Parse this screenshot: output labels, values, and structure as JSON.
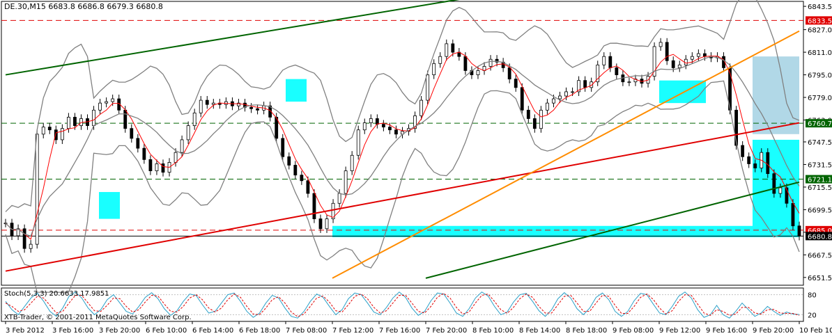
{
  "window": {
    "title": "DE.30,M15  6683.8 6686.8 6679.3 6680.8",
    "copyright": "XTB-Trader, © 2001-2011 MetaQuotes Software Corp."
  },
  "colors": {
    "background": "#ffffff",
    "grid": "#c0c0c0",
    "candle": "#000000",
    "ma": "#ff0000",
    "bollinger": "#808080",
    "green_line": "#006400",
    "red_line": "#e00000",
    "orange_line": "#ff8c00",
    "zone_cyan": "#00ffff",
    "zone_lightblue": "#a8d4e4",
    "stoch_main": "#2aa0c8",
    "stoch_signal": "#e00000"
  },
  "icons": [
    "chart-window"
  ],
  "chart_data": [
    {
      "type": "line",
      "subtype": "candlestick",
      "symbol": "DE.30",
      "timeframe": "M15",
      "ohlc_last": {
        "open": 6683.8,
        "high": 6686.8,
        "low": 6679.3,
        "close": 6680.8
      },
      "x_tick_labels": [
        "3 Feb 2012",
        "3 Feb 16:00",
        "3 Feb 20:00",
        "6 Feb 10:00",
        "6 Feb 14:00",
        "6 Feb 18:00",
        "7 Feb 08:00",
        "7 Feb 12:00",
        "7 Feb 16:00",
        "7 Feb 20:00",
        "8 Feb 10:00",
        "8 Feb 14:00",
        "8 Feb 18:00",
        "9 Feb 08:00",
        "9 Feb 12:00",
        "9 Feb 16:00",
        "9 Feb 20:00",
        "10 Feb 10:00"
      ],
      "y_tick_labels": [
        "6843.5",
        "6827.0",
        "6811.0",
        "6795.0",
        "6779.0",
        "6763.0",
        "6747.5",
        "6731.5",
        "6715.5",
        "6699.5",
        "6683.5",
        "6667.5",
        "6651.5"
      ],
      "ylim": [
        6646,
        6847
      ],
      "price_marks": [
        {
          "label": "6833.5",
          "value": 6833.5,
          "color": "#e00000",
          "line": "dashed"
        },
        {
          "label": "6760.7",
          "value": 6760.7,
          "color": "#006400",
          "line": "dashed"
        },
        {
          "label": "6721.1",
          "value": 6721.1,
          "color": "#006400",
          "line": "dashed"
        },
        {
          "label": "6685.0",
          "value": 6685.0,
          "color": "#e00000",
          "line": "dashed"
        },
        {
          "label": "6680.8",
          "value": 6680.8,
          "color": "#000000",
          "line": "solid"
        }
      ],
      "trend_lines": [
        {
          "color": "#006400",
          "from": {
            "x": "3 Feb 2012",
            "y": 6795
          },
          "to": {
            "x": "8 Feb 10:00",
            "y": 6850
          }
        },
        {
          "color": "#006400",
          "from": {
            "x": "7 Feb 20:00",
            "y": 6651
          },
          "to": {
            "x": "10 Feb 10:00",
            "y": 6719
          }
        },
        {
          "color": "#e00000",
          "from": {
            "x": "3 Feb 2012",
            "y": 6656
          },
          "to": {
            "x": "10 Feb 10:00",
            "y": 6761
          }
        },
        {
          "color": "#ff8c00",
          "from": {
            "x": "7 Feb 12:00",
            "y": 6651
          },
          "to": {
            "x": "10 Feb 10:00",
            "y": 6826
          }
        }
      ],
      "zones": [
        {
          "color": "#00ffff",
          "from": {
            "x": "3 Feb 20:00",
            "y": 6712
          },
          "to": {
            "x": "3 Feb 20:00",
            "y": 6693
          }
        },
        {
          "color": "#00ffff",
          "from": {
            "x": "7 Feb 08:00",
            "y": 6792
          },
          "to": {
            "x": "7 Feb 08:00",
            "y": 6776
          }
        },
        {
          "color": "#00ffff",
          "from": {
            "x": "7 Feb 12:00",
            "y": 6688
          },
          "to": {
            "x": "9 Feb 20:00",
            "y": 6680
          }
        },
        {
          "color": "#00ffff",
          "from": {
            "x": "9 Feb 12:00",
            "y": 6791
          },
          "to": {
            "x": "9 Feb 16:00",
            "y": 6775
          }
        },
        {
          "color": "#00ffff",
          "from": {
            "x": "9 Feb 20:00",
            "y": 6749
          },
          "to": {
            "x": "10 Feb 10:00",
            "y": 6680
          }
        },
        {
          "color": "#a8d4e4",
          "from": {
            "x": "9 Feb 20:00",
            "y": 6808
          },
          "to": {
            "x": "10 Feb 10:00",
            "y": 6753
          }
        }
      ],
      "closes": [
        6690,
        6681,
        6686,
        6672,
        6675,
        6753,
        6758,
        6756,
        6749,
        6757,
        6765,
        6759,
        6764,
        6759,
        6770,
        6775,
        6776,
        6778,
        6770,
        6757,
        6750,
        6743,
        6735,
        6727,
        6732,
        6726,
        6733,
        6740,
        6749,
        6759,
        6768,
        6777,
        6774,
        6775,
        6774,
        6776,
        6773,
        6775,
        6772,
        6771,
        6770,
        6773,
        6765,
        6750,
        6737,
        6731,
        6724,
        6720,
        6711,
        6693,
        6686,
        6693,
        6704,
        6711,
        6727,
        6738,
        6756,
        6761,
        6764,
        6760,
        6758,
        6756,
        6753,
        6755,
        6757,
        6766,
        6777,
        6795,
        6803,
        6808,
        6817,
        6811,
        6808,
        6798,
        6795,
        6798,
        6801,
        6806,
        6804,
        6800,
        6792,
        6786,
        6770,
        6764,
        6757,
        6770,
        6775,
        6778,
        6780,
        6783,
        6783,
        6791,
        6786,
        6790,
        6802,
        6808,
        6800,
        6795,
        6790,
        6790,
        6792,
        6789,
        6794,
        6815,
        6818,
        6805,
        6800,
        6802,
        6806,
        6808,
        6810,
        6808,
        6807,
        6808,
        6800,
        6770,
        6745,
        6737,
        6732,
        6729,
        6740,
        6725,
        6711,
        6715,
        6704,
        6688,
        6680.8
      ]
    },
    {
      "type": "line",
      "title": "Stoch(5,3,3) 20.6633 17.9851",
      "ylim": [
        0,
        100
      ],
      "y_tick_labels": [
        "80",
        "20"
      ],
      "level_lines": [
        80,
        20
      ],
      "series": [
        {
          "name": "main",
          "last": 20.6633,
          "values": [
            60,
            35,
            20,
            45,
            70,
            85,
            60,
            30,
            15,
            40,
            75,
            88,
            70,
            40,
            20,
            35,
            65,
            80,
            55,
            30,
            22,
            45,
            72,
            86,
            68,
            38,
            18,
            32,
            60,
            82,
            78,
            50,
            25,
            30,
            55,
            80,
            85,
            60,
            30,
            12,
            25,
            55,
            78,
            70,
            40,
            15,
            10,
            30,
            60,
            82,
            72,
            45,
            20,
            35,
            68,
            85,
            80,
            55,
            28,
            20,
            42,
            70,
            88,
            72,
            40,
            18,
            30,
            62,
            85,
            82,
            55,
            25,
            15,
            38,
            70,
            88,
            76,
            45,
            20,
            28,
            58,
            80,
            84,
            60,
            32,
            15,
            35,
            68,
            86,
            70,
            38,
            20,
            40,
            72,
            85,
            65,
            30,
            15,
            30,
            62,
            84,
            80,
            52,
            25,
            20,
            45,
            75,
            88,
            70,
            35,
            12,
            20,
            48,
            20,
            10,
            30,
            55,
            35,
            15,
            25,
            45,
            30,
            18,
            28,
            22,
            20.6633
          ]
        },
        {
          "name": "signal",
          "last": 17.9851,
          "values": [
            55,
            45,
            30,
            35,
            55,
            75,
            70,
            48,
            25,
            30,
            55,
            78,
            78,
            55,
            32,
            30,
            48,
            70,
            68,
            45,
            28,
            35,
            58,
            78,
            76,
            52,
            30,
            28,
            45,
            70,
            80,
            65,
            40,
            28,
            40,
            65,
            82,
            72,
            45,
            22,
            20,
            40,
            65,
            74,
            55,
            28,
            14,
            22,
            45,
            70,
            76,
            58,
            32,
            28,
            50,
            75,
            82,
            68,
            42,
            25,
            32,
            55,
            78,
            78,
            55,
            30,
            25,
            45,
            72,
            84,
            70,
            42,
            22,
            28,
            55,
            78,
            82,
            60,
            35,
            24,
            42,
            68,
            82,
            72,
            45,
            25,
            25,
            50,
            75,
            78,
            55,
            30,
            30,
            55,
            78,
            75,
            48,
            24,
            24,
            45,
            72,
            82,
            66,
            40,
            22,
            32,
            60,
            80,
            78,
            52,
            25,
            18,
            35,
            30,
            18,
            22,
            42,
            42,
            25,
            22,
            35,
            36,
            25,
            24,
            24,
            17.9851
          ]
        }
      ]
    }
  ]
}
